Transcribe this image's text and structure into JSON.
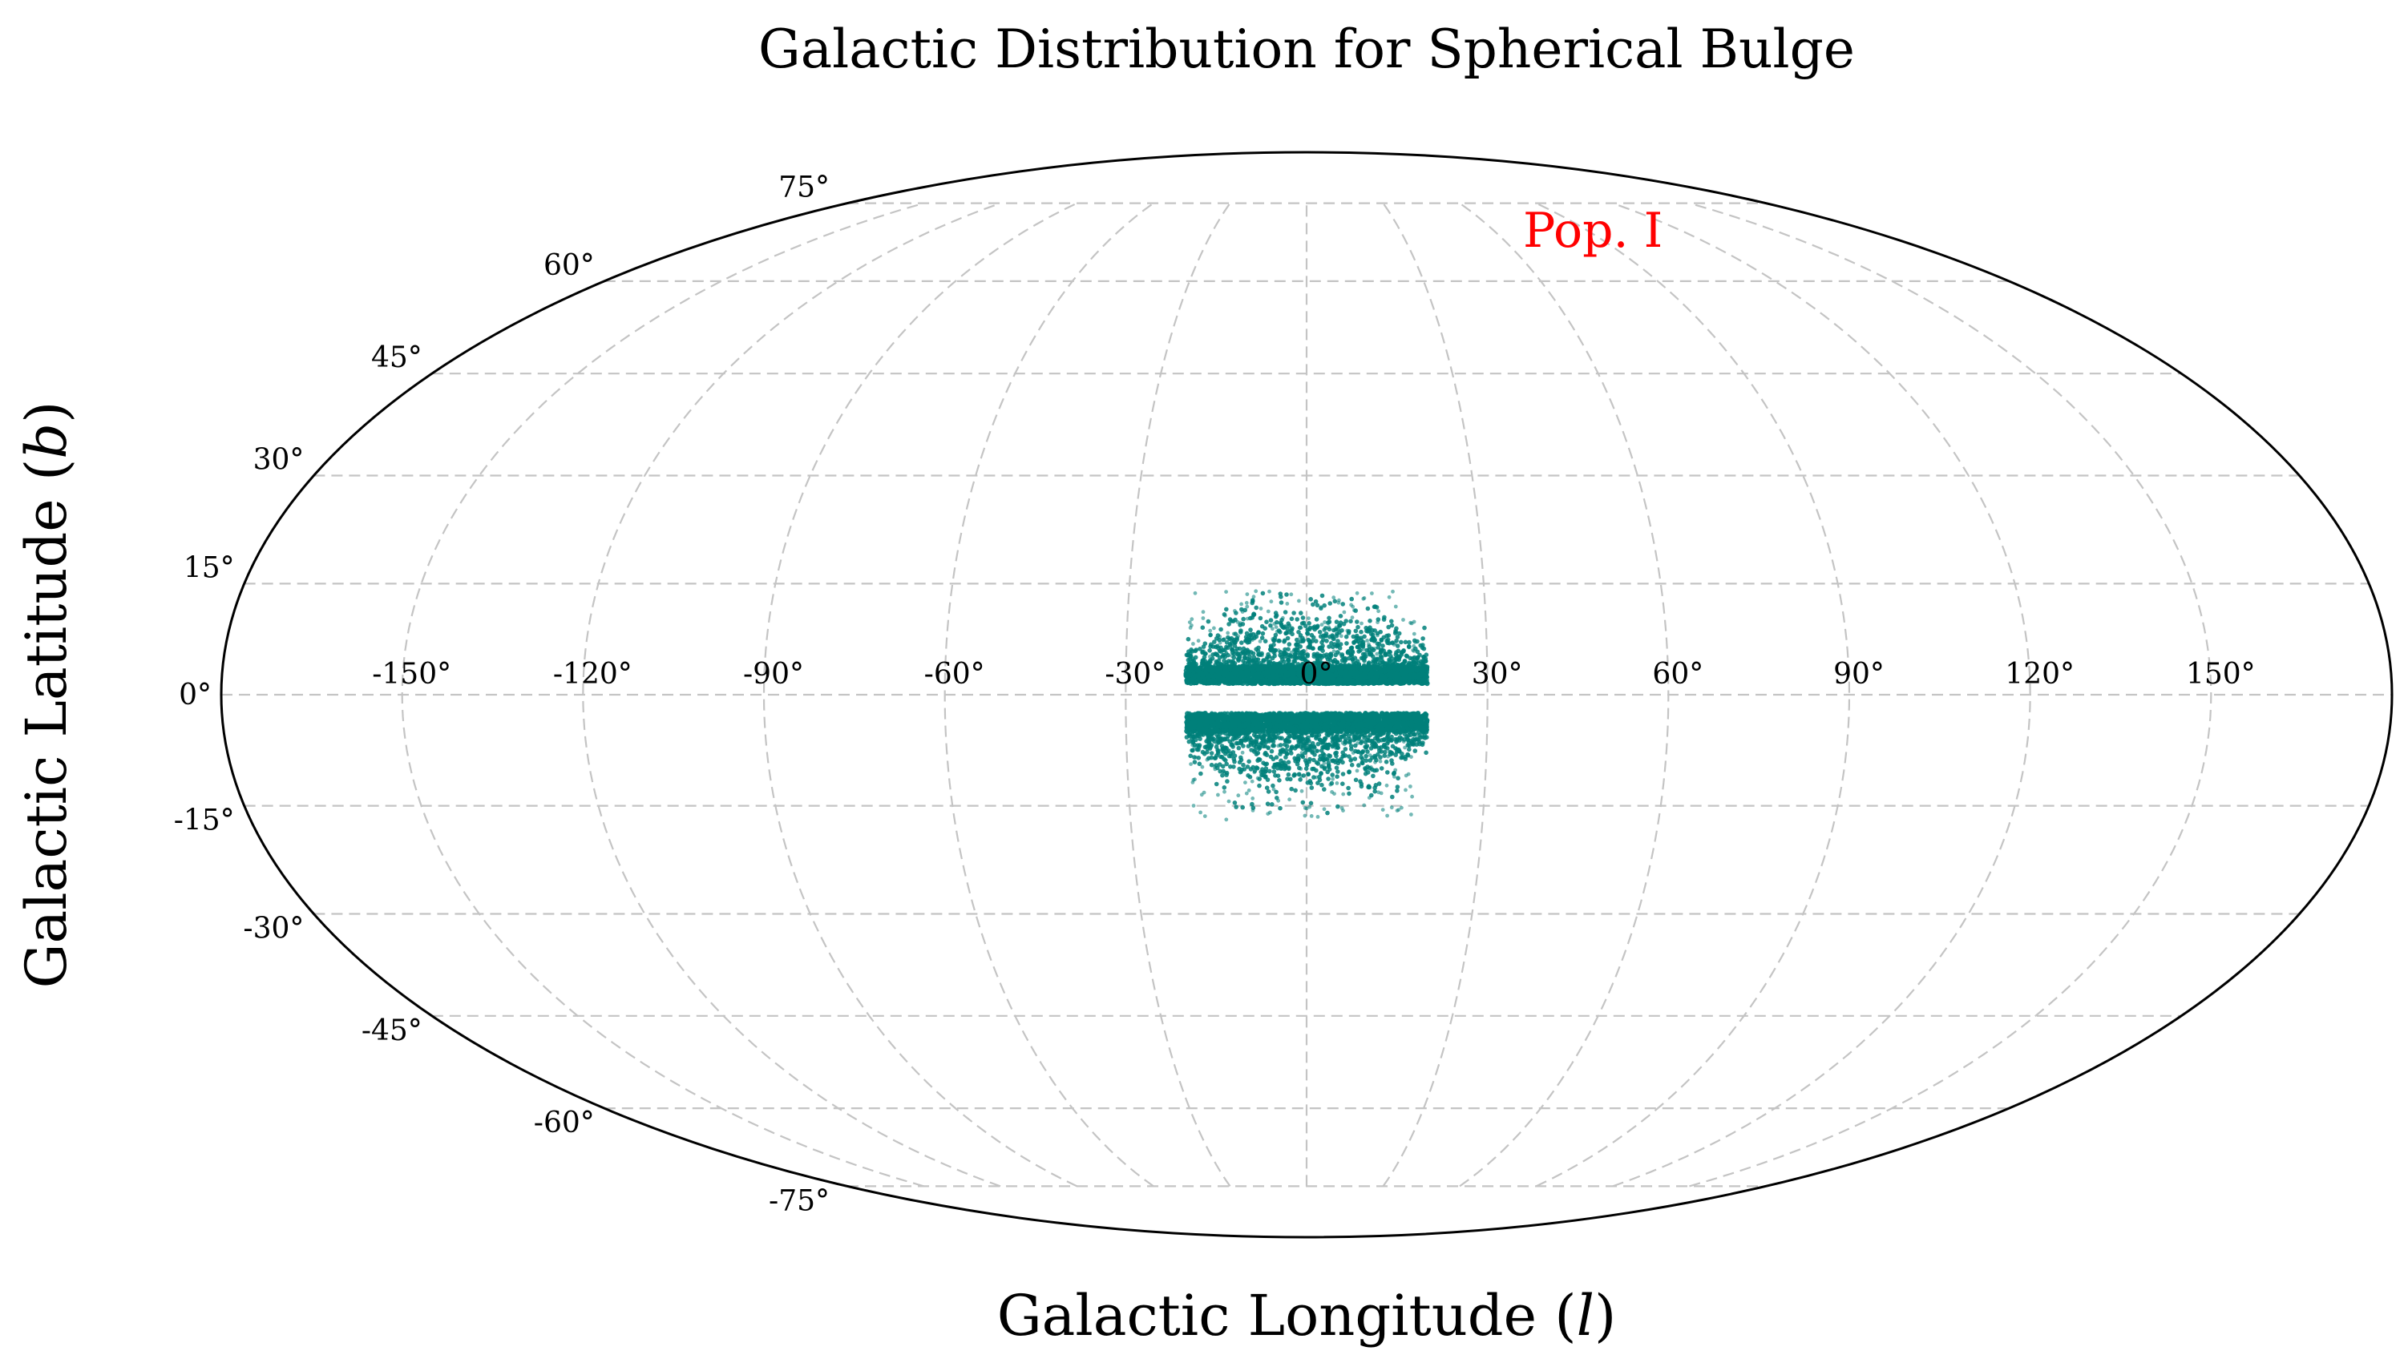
{
  "chart_data": {
    "type": "scatter",
    "projection": "mollweide",
    "title": "Galactic Distribution for Spherical Bulge",
    "xlabel": "Galactic Longitude (l)",
    "ylabel": "Galactic Latitude (b)",
    "xlabel_parts": [
      "Galactic Longitude (",
      "l",
      ")"
    ],
    "ylabel_parts": [
      "Galactic Latitude (",
      "b",
      ")"
    ],
    "xlim": [
      -180,
      180
    ],
    "ylim": [
      -90,
      90
    ],
    "grid": true,
    "longitude_ticks": [
      -150,
      -120,
      -90,
      -60,
      -30,
      0,
      30,
      60,
      90,
      120,
      150
    ],
    "longitude_tick_labels": [
      "-150°",
      "-120°",
      "-90°",
      "-60°",
      "-30°",
      "0°",
      "30°",
      "60°",
      "90°",
      "120°",
      "150°"
    ],
    "latitude_ticks": [
      75,
      60,
      45,
      30,
      15,
      0,
      -15,
      -30,
      -45,
      -60,
      -75
    ],
    "latitude_tick_labels": [
      "75°",
      "60°",
      "45°",
      "30°",
      "15°",
      "0°",
      "-15°",
      "-30°",
      "-45°",
      "-60°",
      "-75°"
    ],
    "annotation": {
      "text": "Pop. I",
      "color": "#ff0000"
    },
    "series": [
      {
        "name": "Pop. I",
        "color": "#00807a",
        "description_regions": [
          {
            "l_range": [
              -20,
              20
            ],
            "b_range": [
              1.5,
              10
            ],
            "tail_max_b": 14
          },
          {
            "l_range": [
              -20,
              20
            ],
            "b_range": [
              -10,
              -2.5
            ],
            "tail_min_b": -17
          }
        ],
        "note": "dense cloud of stars in the Galactic bulge; empty band near b = 0"
      }
    ]
  }
}
